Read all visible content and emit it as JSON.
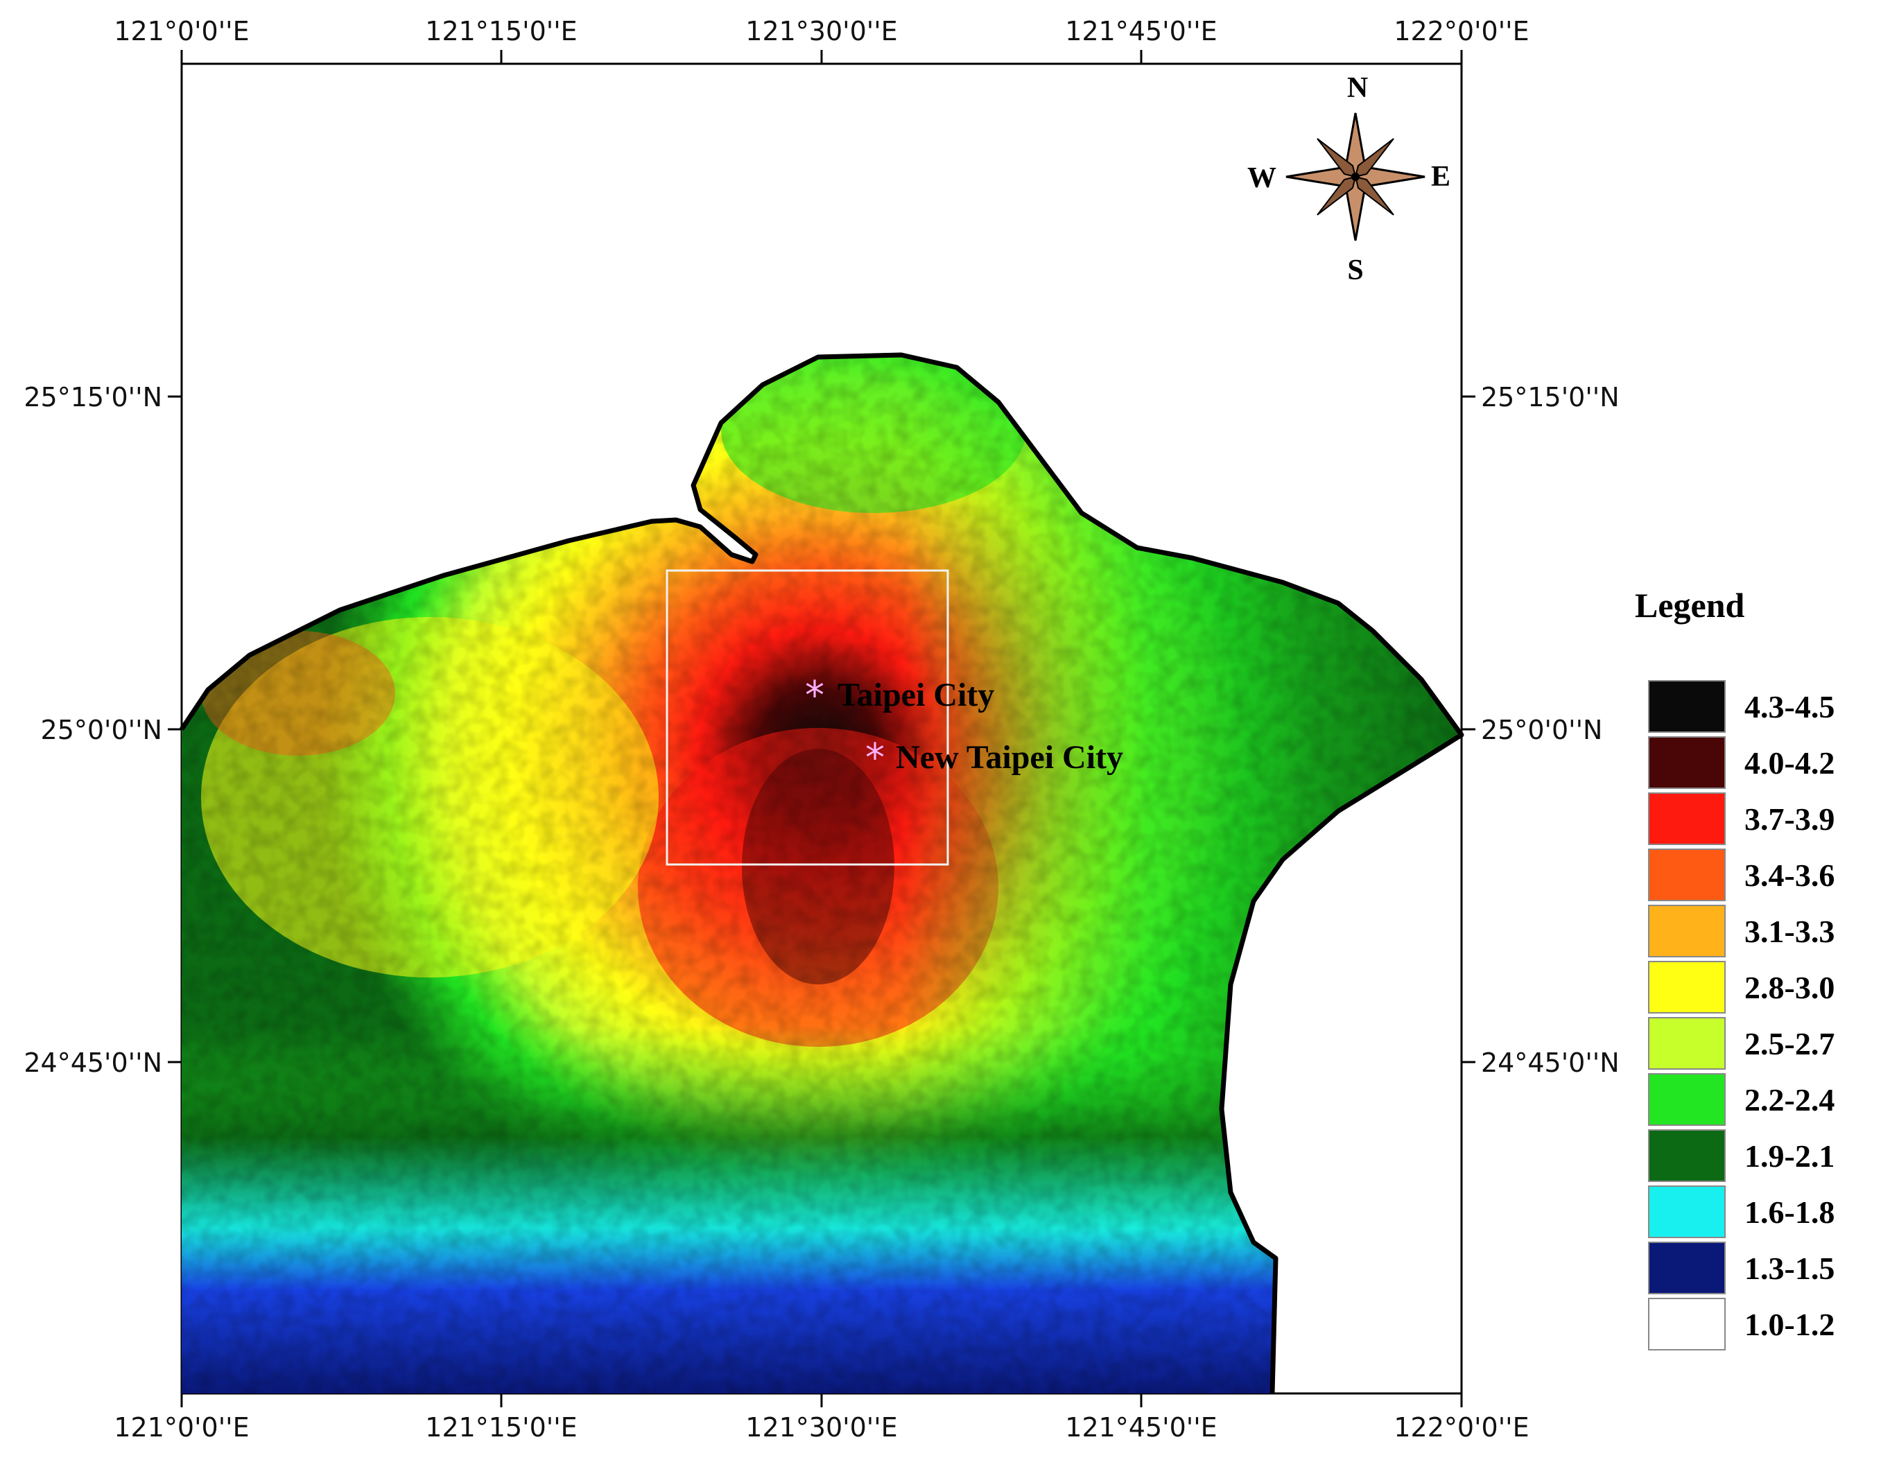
{
  "axes": {
    "top": [
      "121°0'0''E",
      "121°15'0''E",
      "121°30'0''E",
      "121°45'0''E",
      "122°0'0''E"
    ],
    "bottom": [
      "121°0'0''E",
      "121°15'0''E",
      "121°30'0''E",
      "121°45'0''E",
      "122°0'0''E"
    ],
    "left": [
      "25°15'0''N",
      "25°0'0''N",
      "24°45'0''N"
    ],
    "right": [
      "25°15'0''N",
      "25°0'0''N",
      "24°45'0''N"
    ]
  },
  "places": {
    "taipei": "Taipei City",
    "new_taipei": "New Taipei City"
  },
  "compass": {
    "n": "N",
    "e": "E",
    "s": "S",
    "w": "W",
    "icon": "compass-rose-icon"
  },
  "legend": {
    "title": "Legend",
    "items": [
      {
        "label": "4.3-4.5",
        "color": "#0a0a0a"
      },
      {
        "label": "4.0-4.2",
        "color": "#4a0606"
      },
      {
        "label": "3.7-3.9",
        "color": "#ff1a10"
      },
      {
        "label": "3.4-3.6",
        "color": "#ff5a14"
      },
      {
        "label": "3.1-3.3",
        "color": "#ffb21a"
      },
      {
        "label": "2.8-3.0",
        "color": "#ffff14"
      },
      {
        "label": "2.5-2.7",
        "color": "#c6ff2a"
      },
      {
        "label": "2.2-2.4",
        "color": "#22e622"
      },
      {
        "label": "1.9-2.1",
        "color": "#0c6a14"
      },
      {
        "label": "1.6-1.8",
        "color": "#18f0f0"
      },
      {
        "label": "1.3-1.5",
        "color": "#0a1878"
      },
      {
        "label": "1.0-1.2",
        "color": "#ffffff"
      }
    ]
  }
}
